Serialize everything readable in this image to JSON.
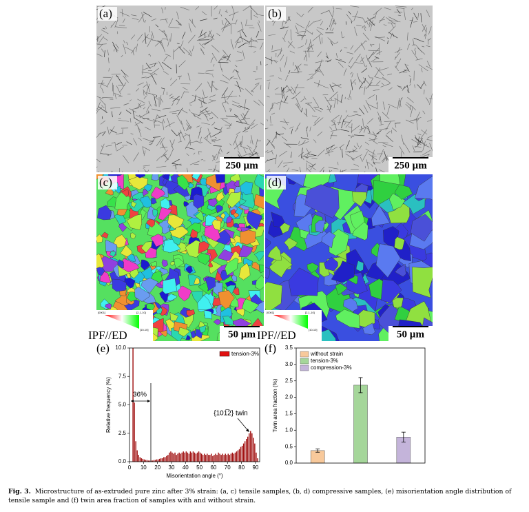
{
  "panels": [
    {
      "label": "(a)",
      "scale": "250 µm"
    },
    {
      "label": "(b)",
      "scale": "250 µm"
    },
    {
      "label": "(c)",
      "scale": "50 µm",
      "ipf": "IPF//ED"
    },
    {
      "label": "(d)",
      "scale": "50 µm",
      "ipf": "IPF//ED"
    }
  ],
  "ipf_key": [
    "[0001]",
    "[2-1-10]",
    "[10-10]"
  ],
  "chart_data": [
    {
      "type": "histogram",
      "panel": "(e)",
      "xlabel": "Misorientation angle (°)",
      "ylabel": "Relative frequency (%)",
      "series": [
        {
          "name": "tension-3%",
          "color": "#a01010",
          "legend_color": "#e01010"
        }
      ],
      "bins": [
        2,
        3,
        4,
        5,
        6,
        7,
        8,
        9,
        10,
        11,
        12,
        13,
        14,
        15,
        16,
        17,
        18,
        19,
        20,
        21,
        22,
        23,
        24,
        25,
        26,
        27,
        28,
        29,
        30,
        31,
        32,
        33,
        34,
        35,
        36,
        37,
        38,
        39,
        40,
        41,
        42,
        43,
        44,
        45,
        46,
        47,
        48,
        49,
        50,
        51,
        52,
        53,
        54,
        55,
        56,
        57,
        58,
        59,
        60,
        61,
        62,
        63,
        64,
        65,
        66,
        67,
        68,
        69,
        70,
        71,
        72,
        73,
        74,
        75,
        76,
        77,
        78,
        79,
        80,
        81,
        82,
        83,
        84,
        85,
        86,
        87,
        88,
        89,
        90,
        91,
        92
      ],
      "values": [
        10.0,
        5.2,
        1.8,
        1.0,
        0.6,
        0.4,
        0.3,
        0.25,
        0.2,
        0.15,
        0.15,
        0.1,
        0.1,
        0.1,
        0.1,
        0.15,
        0.15,
        0.2,
        0.2,
        0.25,
        0.3,
        0.3,
        0.4,
        0.4,
        0.5,
        0.6,
        0.8,
        0.9,
        0.8,
        0.7,
        0.8,
        0.6,
        0.7,
        0.8,
        0.7,
        0.8,
        0.9,
        0.8,
        0.9,
        0.8,
        0.7,
        0.9,
        0.8,
        0.9,
        0.8,
        0.7,
        0.8,
        0.9,
        0.8,
        0.7,
        0.6,
        0.7,
        0.6,
        0.7,
        0.6,
        0.6,
        0.7,
        0.5,
        0.6,
        0.7,
        0.6,
        0.8,
        0.7,
        0.6,
        0.7,
        0.6,
        0.7,
        0.6,
        0.7,
        0.6,
        0.7,
        0.8,
        0.7,
        0.8,
        0.9,
        1.0,
        1.1,
        1.3,
        1.4,
        1.6,
        1.8,
        2.0,
        2.2,
        2.5,
        2.7,
        2.5,
        2.1,
        1.6,
        0.8,
        0.3
      ],
      "xlim": [
        0,
        93
      ],
      "ylim": [
        0,
        10
      ],
      "xticks": [
        0,
        10,
        20,
        30,
        40,
        50,
        60,
        70,
        80,
        90
      ],
      "yticks": [
        {
          "value": 0,
          "label": "0.0"
        },
        2.5,
        {
          "value": 5,
          "label": "5.0"
        },
        7.5,
        {
          "value": 10,
          "label": "10.0"
        }
      ],
      "annotations": [
        "36%",
        "{101̅2} twin"
      ]
    },
    {
      "type": "bar",
      "panel": "(f)",
      "ylabel": "Twin area fraction (%)",
      "series": [
        {
          "name": "without strain",
          "color": "#f8c99b",
          "values": [
            0.38
          ],
          "errors": [
            0.05
          ]
        },
        {
          "name": "tension-3%",
          "color": "#a5d69a",
          "values": [
            2.37
          ],
          "errors": [
            0.23
          ]
        },
        {
          "name": "compression-3%",
          "color": "#c4b4da",
          "values": [
            0.79
          ],
          "errors": [
            0.15
          ]
        }
      ],
      "ylim": [
        0,
        3.5
      ],
      "yticks": [
        {
          "value": 0,
          "label": "0.0"
        },
        0.5,
        {
          "value": 1,
          "label": "1.0"
        },
        1.5,
        {
          "value": 2,
          "label": "2.0"
        },
        2.5,
        {
          "value": 3,
          "label": "3.0"
        },
        3.5
      ]
    }
  ],
  "caption": {
    "label": "Fig. 3.",
    "text": "Microstructure of as-extruded pure zinc after 3% strain: (a, c) tensile samples, (b, d) compressive samples, (e) misorientation angle distribution of tensile sample and (f) twin area fraction of samples with and without strain."
  }
}
